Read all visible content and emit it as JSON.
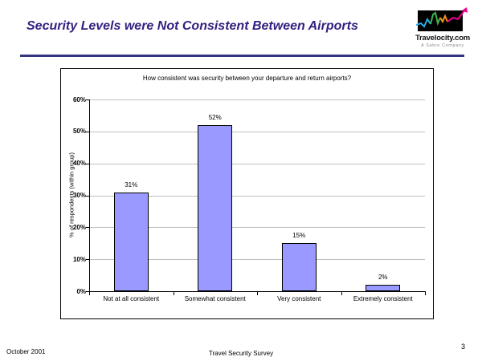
{
  "slide": {
    "title": "Security Levels were Not Consistent Between Airports",
    "footer_left": "October 2001",
    "footer_center": "Travel Security Survey",
    "page_number": "3"
  },
  "logo": {
    "name": "Travelocity.com",
    "tagline": "A Sabre Company"
  },
  "colors": {
    "slide_title": "#331F80",
    "divider": "#333380",
    "bar_fill": "#9999FF",
    "bar_border": "#000000",
    "gridline": "#C0C0C0",
    "logo_line_blue": "#29ABE2",
    "logo_line_green": "#39B54A",
    "logo_line_orange": "#F7931E",
    "logo_line_magenta": "#EC008C"
  },
  "chart_data": {
    "type": "bar",
    "title": "How consistent was security between your departure and return airports?",
    "categories": [
      "Not at all consistent",
      "Somewhat consistent",
      "Very consistent",
      "Extremely consistent"
    ],
    "values": [
      31,
      52,
      15,
      2
    ],
    "data_labels": [
      "31%",
      "52%",
      "15%",
      "2%"
    ],
    "xlabel": "",
    "ylabel": "% of respondents (within group)",
    "ylim": [
      0,
      60
    ],
    "ytick_interval": 10,
    "ytick_labels": [
      "0%",
      "10%",
      "20%",
      "30%",
      "40%",
      "50%",
      "60%"
    ],
    "grid": true,
    "legend_position": "none"
  }
}
